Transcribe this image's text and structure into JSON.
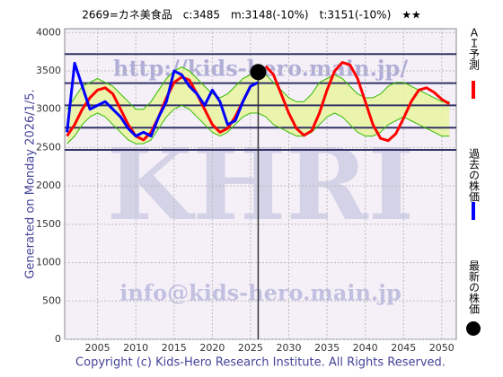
{
  "chart_data": {
    "type": "line",
    "title": "2669=カネ美食品　c:3485　m:3148(-10%)　t:3151(-10%)　★★",
    "side_text": "Generated on Monday 2026/1/5.",
    "footer": "Copyright (c) Kids-Hero Research Institute. All Rights Reserved.",
    "watermarks": [
      "http://kids-hero.main.jp/",
      "KHRI",
      "info@kids-hero.main.jp"
    ],
    "x": [
      2001,
      2002,
      2003,
      2004,
      2005,
      2006,
      2007,
      2008,
      2009,
      2010,
      2011,
      2012,
      2013,
      2014,
      2015,
      2016,
      2017,
      2018,
      2019,
      2020,
      2021,
      2022,
      2023,
      2024,
      2025,
      2026,
      2027,
      2028,
      2029,
      2030,
      2031,
      2032,
      2033,
      2034,
      2035,
      2036,
      2037,
      2038,
      2039,
      2040,
      2041,
      2042,
      2043,
      2044,
      2045,
      2046,
      2047,
      2048,
      2049,
      2050,
      2051
    ],
    "xlim": [
      2000.7,
      2051.9
    ],
    "xticks": [
      2005,
      2010,
      2015,
      2020,
      2025,
      2030,
      2035,
      2040,
      2045,
      2050
    ],
    "ylim": [
      0,
      4050
    ],
    "yticks": [
      0,
      500,
      1000,
      1500,
      2000,
      2500,
      3000,
      3500,
      4000
    ],
    "grid": true,
    "hlines": [
      3720,
      3340,
      3050,
      2760,
      2470
    ],
    "vline": 2026,
    "series": [
      {
        "name": "ＡＩ予測",
        "color": "#ff0000",
        "legend": true,
        "values": [
          2650,
          2800,
          3000,
          3150,
          3250,
          3280,
          3200,
          3000,
          2800,
          2650,
          2600,
          2700,
          2900,
          3150,
          3350,
          3420,
          3380,
          3200,
          3000,
          2800,
          2700,
          2750,
          2900,
          3100,
          3300,
          null,
          3560,
          3450,
          3200,
          2950,
          2750,
          2660,
          2720,
          2950,
          3250,
          3500,
          3610,
          3580,
          3400,
          3100,
          2800,
          2620,
          2590,
          2680,
          2880,
          3100,
          3250,
          3280,
          3220,
          3130,
          3070
        ]
      },
      {
        "name": "過去の株価",
        "color": "#0000ff",
        "legend": true,
        "values": [
          2700,
          3600,
          3300,
          3000,
          3050,
          3100,
          3000,
          2900,
          2750,
          2650,
          2700,
          2650,
          2900,
          3100,
          3500,
          3450,
          3300,
          3200,
          3050,
          3250,
          3100,
          2800,
          2850,
          3100,
          3300,
          3350,
          null,
          null,
          null,
          null,
          null,
          null,
          null,
          null,
          null,
          null,
          null,
          null,
          null,
          null,
          null,
          null,
          null,
          null,
          null,
          null,
          null,
          null,
          null,
          null,
          null
        ]
      },
      {
        "color": "#33bb00",
        "values": [
          3000,
          3150,
          3300,
          3350,
          3400,
          3350,
          3300,
          3200,
          3100,
          3000,
          3000,
          3100,
          3250,
          3400,
          3500,
          3550,
          3500,
          3400,
          3300,
          3200,
          3150,
          3200,
          3300,
          3400,
          3450,
          3500,
          3450,
          3350,
          3250,
          3150,
          3100,
          3100,
          3200,
          3350,
          3400,
          3450,
          3400,
          3300,
          3200,
          3150,
          3150,
          3200,
          3300,
          3350,
          3350,
          3300,
          3250,
          3200,
          3150,
          3100,
          3100
        ]
      },
      {
        "color": "#33bb00",
        "values": [
          2550,
          2650,
          2800,
          2900,
          2950,
          2900,
          2800,
          2700,
          2600,
          2550,
          2550,
          2600,
          2750,
          2900,
          3000,
          3050,
          3000,
          2900,
          2800,
          2700,
          2650,
          2700,
          2800,
          2900,
          2950,
          2950,
          2900,
          2800,
          2750,
          2700,
          2650,
          2650,
          2700,
          2800,
          2900,
          2950,
          2900,
          2800,
          2700,
          2650,
          2650,
          2700,
          2800,
          2850,
          2900,
          2850,
          2800,
          2750,
          2700,
          2650,
          2650
        ]
      }
    ],
    "band_color": "#e8f5a0",
    "latest": {
      "name": "最新の株価",
      "x": 2026,
      "y": 3485,
      "color": "#000000"
    }
  }
}
